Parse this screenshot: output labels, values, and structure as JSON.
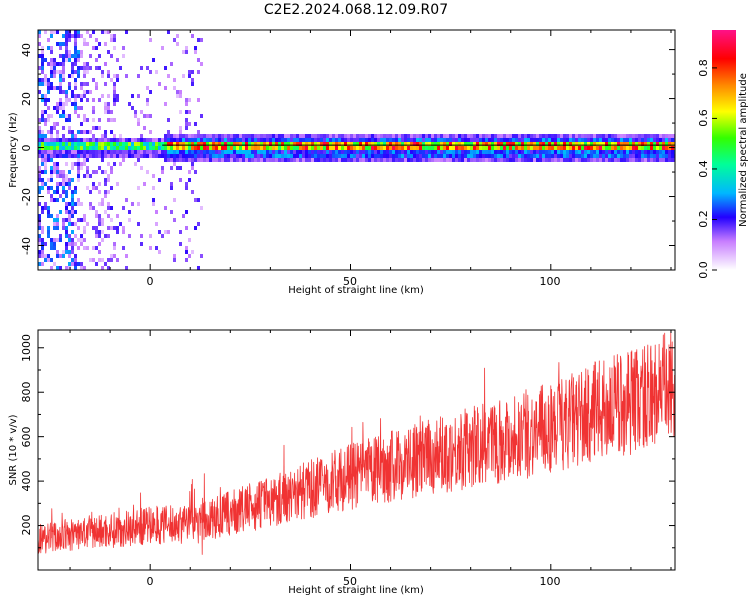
{
  "figure": {
    "title": "C2E2.2024.068.12.09.R07"
  },
  "chart_data": [
    {
      "type": "heatmap",
      "xlabel": "Height of straight line (km)",
      "ylabel": "Frequency (Hz)",
      "xlim": [
        -28,
        131
      ],
      "ylim": [
        -50,
        48
      ],
      "x_ticks": [
        "0",
        "50",
        "100"
      ],
      "y_ticks": [
        "-40",
        "-20",
        "0",
        "20",
        "40"
      ],
      "colorbar": {
        "label": "Normalized spectral amplitude",
        "range": [
          0,
          0.95
        ],
        "ticks": [
          "0.0",
          "0.2",
          "0.4",
          "0.6",
          "0.8"
        ]
      },
      "trace": {
        "frequency_hz": 1,
        "x_start": 3,
        "x_end": 131
      }
    },
    {
      "type": "line",
      "xlabel": "Height of straight line (km)",
      "ylabel": "SNR (10 * v/v)",
      "xlim": [
        -28,
        131
      ],
      "ylim": [
        0,
        1080
      ],
      "x_ticks": [
        "0",
        "50",
        "100"
      ],
      "y_ticks": [
        "200",
        "400",
        "600",
        "800",
        "1000"
      ],
      "color": "#f03333",
      "trend": {
        "x": [
          -28,
          0,
          12,
          50,
          100,
          131
        ],
        "y": [
          140,
          200,
          210,
          420,
          640,
          830
        ]
      }
    }
  ]
}
